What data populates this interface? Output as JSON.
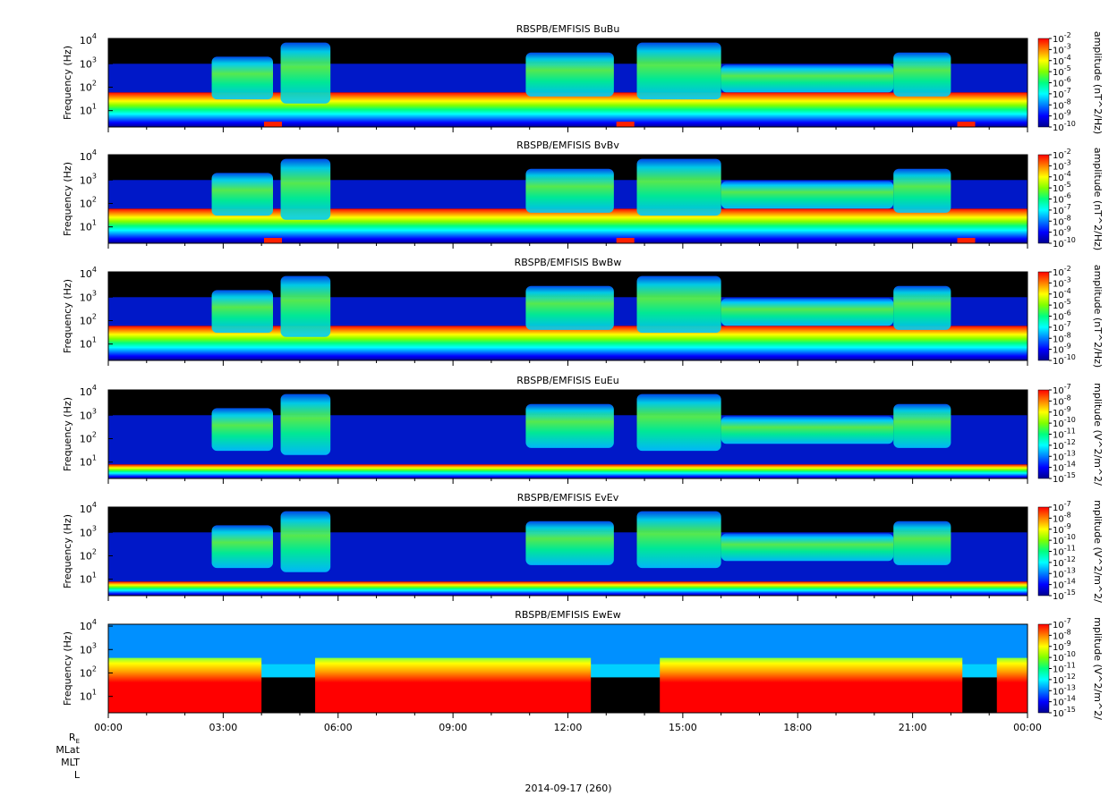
{
  "figure": {
    "panels": [
      {
        "title": "RBSPB/EMFISIS  BuBu",
        "ylabel": "Frequency (Hz)",
        "colorbar_label": "amplitude (nT^2/Hz)",
        "cb_min_exp": -10,
        "cb_max_exp": -2,
        "kind": "B"
      },
      {
        "title": "RBSPB/EMFISIS  BvBv",
        "ylabel": "Frequency (Hz)",
        "colorbar_label": "amplitude (nT^2/Hz)",
        "cb_min_exp": -10,
        "cb_max_exp": -2,
        "kind": "B"
      },
      {
        "title": "RBSPB/EMFISIS  BwBw",
        "ylabel": "Frequency (Hz)",
        "colorbar_label": "amplitude (nT^2/Hz)",
        "cb_min_exp": -10,
        "cb_max_exp": -2,
        "kind": "B"
      },
      {
        "title": "RBSPB/EMFISIS  EuEu",
        "ylabel": "Frequency (Hz)",
        "colorbar_label": "mplitude (V^2/m^2/",
        "cb_min_exp": -15,
        "cb_max_exp": -7,
        "kind": "E"
      },
      {
        "title": "RBSPB/EMFISIS  EvEv",
        "ylabel": "Frequency (Hz)",
        "colorbar_label": "mplitude (V^2/m^2/",
        "cb_min_exp": -15,
        "cb_max_exp": -7,
        "kind": "E"
      },
      {
        "title": "RBSPB/EMFISIS  EwEw",
        "ylabel": "Frequency (Hz)",
        "colorbar_label": "mplitude (V^2/m^2/",
        "cb_min_exp": -15,
        "cb_max_exp": -7,
        "kind": "Ew"
      }
    ],
    "x_tick_labels": [
      "00:00",
      "03:00",
      "06:00",
      "09:00",
      "12:00",
      "15:00",
      "18:00",
      "21:00",
      "00:00"
    ],
    "y_tick_exponents": [
      1,
      2,
      3,
      4
    ],
    "ephemeris_labels": [
      "R",
      "MLat",
      "MLT",
      "L"
    ],
    "ephemeris_subscript": "E",
    "date_label": "2014-09-17 (260)",
    "colormap": [
      "#000090",
      "#0000ff",
      "#0080ff",
      "#00ffff",
      "#00ff80",
      "#80ff00",
      "#ffff00",
      "#ff8000",
      "#ff0000"
    ],
    "fill_color": "#000000"
  },
  "chart_data": {
    "type": "heatmap",
    "x": {
      "unit": "UT",
      "range": [
        "00:00",
        "24:00"
      ],
      "ticks": [
        "00:00",
        "03:00",
        "06:00",
        "09:00",
        "12:00",
        "15:00",
        "18:00",
        "21:00",
        "00:00"
      ]
    },
    "y": {
      "label": "Frequency (Hz)",
      "scale": "log",
      "range": [
        2,
        12000
      ],
      "ticks": [
        10,
        100,
        1000,
        10000
      ]
    },
    "z": {
      "scale": "log"
    },
    "panels": [
      {
        "title": "RBSPB/EMFISIS  BuBu",
        "z_range": [
          1e-10,
          0.01
        ],
        "z_label": "amplitude (nT^2/Hz)"
      },
      {
        "title": "RBSPB/EMFISIS  BvBv",
        "z_range": [
          1e-10,
          0.01
        ],
        "z_label": "amplitude (nT^2/Hz)"
      },
      {
        "title": "RBSPB/EMFISIS  BwBw",
        "z_range": [
          1e-10,
          0.01
        ],
        "z_label": "amplitude (nT^2/Hz)"
      },
      {
        "title": "RBSPB/EMFISIS  EuEu",
        "z_range": [
          1e-15,
          1e-07
        ],
        "z_label": "mplitude (V^2/m^2/"
      },
      {
        "title": "RBSPB/EMFISIS  EvEv",
        "z_range": [
          1e-15,
          1e-07
        ],
        "z_label": "mplitude (V^2/m^2/"
      },
      {
        "title": "RBSPB/EMFISIS  EwEw",
        "z_range": [
          1e-15,
          1e-07
        ],
        "z_label": "mplitude (V^2/m^2/"
      }
    ],
    "hiss_bands": [
      {
        "start_h": 2.7,
        "end_h": 4.3,
        "f_low": 30,
        "f_high": 2000
      },
      {
        "start_h": 4.5,
        "end_h": 5.8,
        "f_low": 20,
        "f_high": 8000
      },
      {
        "start_h": 10.9,
        "end_h": 13.2,
        "f_low": 40,
        "f_high": 3000
      },
      {
        "start_h": 13.8,
        "end_h": 16.0,
        "f_low": 30,
        "f_high": 8000
      },
      {
        "start_h": 16.0,
        "end_h": 20.5,
        "f_low": 60,
        "f_high": 900
      },
      {
        "start_h": 20.5,
        "end_h": 22.0,
        "f_low": 40,
        "f_high": 3000
      }
    ],
    "perigee_times_h": [
      4.3,
      13.5,
      22.4
    ]
  }
}
